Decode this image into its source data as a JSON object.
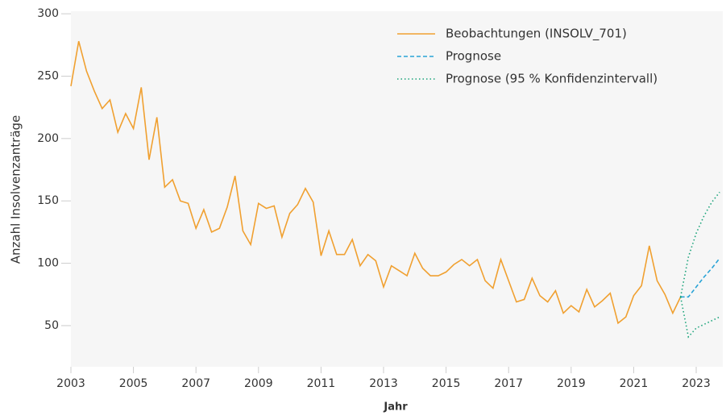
{
  "chart_data": {
    "type": "line",
    "xlabel": "Jahr",
    "ylabel": "Anzahl Insolvenzanträge",
    "xlim": [
      2003,
      2023.85
    ],
    "ylim": [
      17,
      302
    ],
    "xticks": [
      2003,
      2005,
      2007,
      2009,
      2011,
      2013,
      2015,
      2017,
      2019,
      2021,
      2023
    ],
    "yticks": [
      50,
      100,
      150,
      200,
      250,
      300
    ],
    "legend": "top-right",
    "series": [
      {
        "name": "Beobachtungen (INSOLV_701)",
        "color": "#f0a030",
        "style": "solid",
        "x": [
          2003,
          2003.25,
          2003.5,
          2003.75,
          2004,
          2004.25,
          2004.5,
          2004.75,
          2005,
          2005.25,
          2005.5,
          2005.75,
          2006,
          2006.25,
          2006.5,
          2006.75,
          2007,
          2007.25,
          2007.5,
          2007.75,
          2008,
          2008.25,
          2008.5,
          2008.75,
          2009,
          2009.25,
          2009.5,
          2009.75,
          2010,
          2010.25,
          2010.5,
          2010.75,
          2011,
          2011.25,
          2011.5,
          2011.75,
          2012,
          2012.25,
          2012.5,
          2012.75,
          2013,
          2013.25,
          2013.5,
          2013.75,
          2014,
          2014.25,
          2014.5,
          2014.75,
          2015,
          2015.25,
          2015.5,
          2015.75,
          2016,
          2016.25,
          2016.5,
          2016.75,
          2017,
          2017.25,
          2017.5,
          2017.75,
          2018,
          2018.25,
          2018.5,
          2018.75,
          2019,
          2019.25,
          2019.5,
          2019.75,
          2020,
          2020.25,
          2020.5,
          2020.75,
          2021,
          2021.25,
          2021.5,
          2021.75,
          2022,
          2022.25,
          2022.5
        ],
        "values": [
          242,
          278,
          254,
          238,
          224,
          231,
          205,
          220,
          208,
          241,
          183,
          217,
          161,
          167,
          150,
          148,
          128,
          143,
          125,
          128,
          145,
          170,
          126,
          115,
          148,
          144,
          146,
          121,
          140,
          147,
          160,
          149,
          106,
          126,
          107,
          107,
          119,
          98,
          107,
          102,
          81,
          98,
          94,
          90,
          108,
          96,
          90,
          90,
          93,
          99,
          103,
          98,
          103,
          86,
          80,
          103,
          86,
          69,
          71,
          88,
          74,
          69,
          78,
          60,
          66,
          61,
          79,
          65,
          70,
          76,
          52,
          57,
          74,
          82,
          114,
          86,
          75,
          60,
          73
        ]
      },
      {
        "name": "Prognose",
        "color": "#29a3d6",
        "style": "dashed",
        "x": [
          2022.5,
          2022.75,
          2023,
          2023.25,
          2023.5,
          2023.75
        ],
        "values": [
          73,
          73,
          81,
          89,
          96,
          104
        ]
      }
    ],
    "interval": {
      "name": "Prognose (95 % Konfidenzintervall)",
      "color": "#1aa37a",
      "style": "dotted",
      "x": [
        2022.5,
        2022.75,
        2023,
        2023.25,
        2023.5,
        2023.75
      ],
      "lower": [
        73,
        41,
        48,
        51,
        54,
        57
      ],
      "upper": [
        73,
        105,
        124,
        138,
        149,
        157
      ]
    }
  }
}
